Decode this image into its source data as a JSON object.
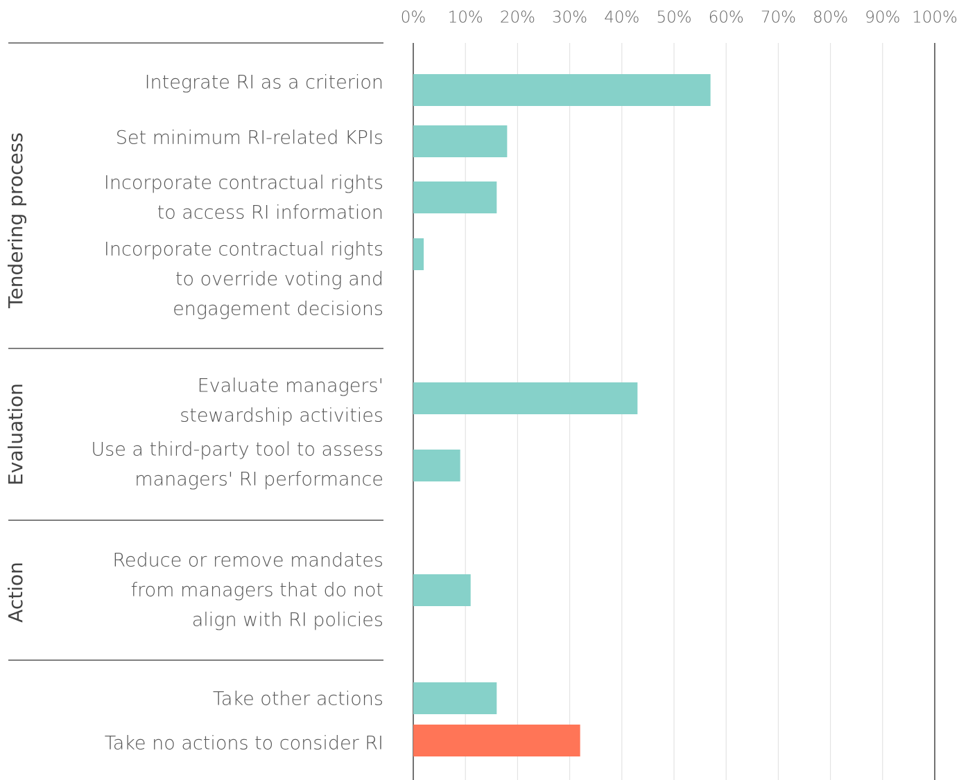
{
  "chart_data": {
    "type": "bar",
    "orientation": "horizontal",
    "xlim": [
      0,
      100
    ],
    "xticks": [
      {
        "value": 0,
        "label": "0%"
      },
      {
        "value": 10,
        "label": "10%"
      },
      {
        "value": 20,
        "label": "20%"
      },
      {
        "value": 30,
        "label": "30%"
      },
      {
        "value": 40,
        "label": "40%"
      },
      {
        "value": 50,
        "label": "50%"
      },
      {
        "value": 60,
        "label": "60%"
      },
      {
        "value": 70,
        "label": "70%"
      },
      {
        "value": 80,
        "label": "80%"
      },
      {
        "value": 90,
        "label": "90%"
      },
      {
        "value": 100,
        "label": "100%"
      }
    ],
    "grid": true,
    "groups": [
      {
        "name": "Tendering process",
        "categories": [
          [
            "Integrate RI as a criterion"
          ],
          [
            "Set minimum RI-related KPIs"
          ],
          [
            "Incorporate contractual rights",
            "to access RI information"
          ],
          [
            "Incorporate contractual rights",
            "to override voting and",
            "engagement decisions"
          ]
        ],
        "values": [
          57,
          18,
          16,
          2
        ],
        "colors": [
          "#86d1c9",
          "#86d1c9",
          "#86d1c9",
          "#86d1c9"
        ]
      },
      {
        "name": "Evaluation",
        "categories": [
          [
            "Evaluate managers'",
            "stewardship activities"
          ],
          [
            "Use a third-party tool to assess",
            "managers' RI performance"
          ]
        ],
        "values": [
          43,
          9
        ],
        "colors": [
          "#86d1c9",
          "#86d1c9"
        ]
      },
      {
        "name": "Action",
        "categories": [
          [
            "Reduce or remove mandates",
            "from managers that do not",
            "align with RI policies"
          ]
        ],
        "values": [
          11
        ],
        "colors": [
          "#86d1c9"
        ]
      },
      {
        "categories": [
          [
            "Take other actions"
          ],
          [
            "Take no actions to consider RI"
          ]
        ],
        "values": [
          16,
          32
        ],
        "colors": [
          "#86d1c9",
          "#ff7557"
        ]
      }
    ]
  }
}
